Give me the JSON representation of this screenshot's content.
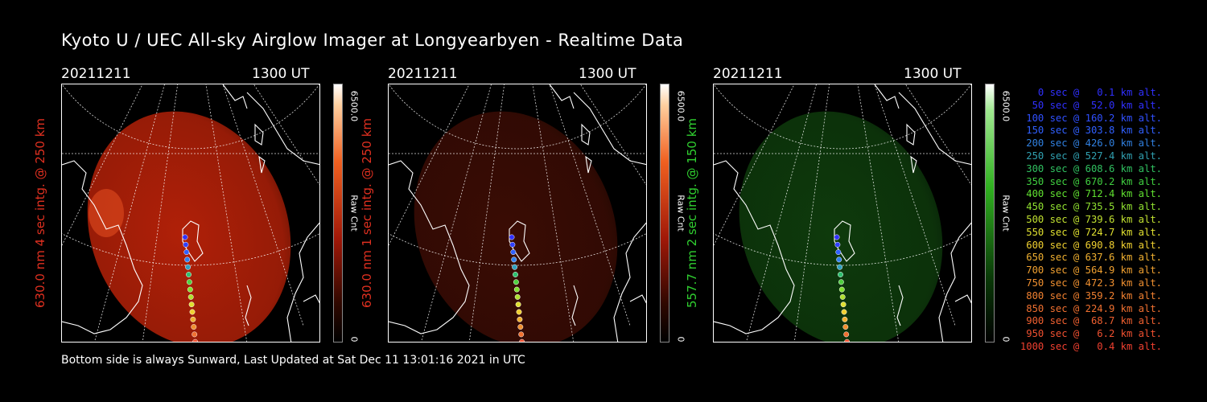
{
  "title": "Kyoto U / UEC All-sky Airglow Imager at Longyearbyen - Realtime Data",
  "footer": "Bottom side is always Sunward, Last Updated at Sat Dec 11 13:01:16 2021 in UTC",
  "panels": [
    {
      "date": "20211211",
      "time": "1300 UT",
      "label": "630.0 nm 4 sec intg. @ 250 km",
      "label_color": "#e03020",
      "cb_max": "6500.0",
      "cb_unit": "Raw Cnt",
      "cb_min": "0",
      "image_color": "#b02008",
      "colorbar": "red"
    },
    {
      "date": "20211211",
      "time": "1300 UT",
      "label": "630.0 nm 1 sec intg. @ 250 km",
      "label_color": "#e03020",
      "cb_max": "6500.0",
      "cb_unit": "Raw Cnt",
      "cb_min": "0",
      "image_color": "#3a0c04",
      "colorbar": "red"
    },
    {
      "date": "20211211",
      "time": "1300 UT",
      "label": "557.7 nm 2 sec intg. @ 150 km",
      "label_color": "#30d030",
      "cb_max": "6500.0",
      "cb_unit": "Raw Cnt",
      "cb_min": "0",
      "image_color": "#0e3a0c",
      "colorbar": "green"
    }
  ],
  "legend": [
    {
      "text": "0 sec @   0.1 km alt.",
      "color": "#3030ff"
    },
    {
      "text": "50 sec @  52.0 km alt.",
      "color": "#3030ff"
    },
    {
      "text": "100 sec @ 160.2 km alt.",
      "color": "#3050ff"
    },
    {
      "text": "150 sec @ 303.8 km alt.",
      "color": "#3060ff"
    },
    {
      "text": "200 sec @ 426.0 km alt.",
      "color": "#3080e0"
    },
    {
      "text": "250 sec @ 527.4 km alt.",
      "color": "#30a0b0"
    },
    {
      "text": "300 sec @ 608.6 km alt.",
      "color": "#30c060"
    },
    {
      "text": "350 sec @ 670.2 km alt.",
      "color": "#40d040"
    },
    {
      "text": "400 sec @ 712.4 km alt.",
      "color": "#60e030"
    },
    {
      "text": "450 sec @ 735.5 km alt.",
      "color": "#90e030"
    },
    {
      "text": "500 sec @ 739.6 km alt.",
      "color": "#c0e030"
    },
    {
      "text": "550 sec @ 724.7 km alt.",
      "color": "#e0e030"
    },
    {
      "text": "600 sec @ 690.8 km alt.",
      "color": "#f0d030"
    },
    {
      "text": "650 sec @ 637.6 km alt.",
      "color": "#f0b030"
    },
    {
      "text": "700 sec @ 564.9 km alt.",
      "color": "#f0a030"
    },
    {
      "text": "750 sec @ 472.3 km alt.",
      "color": "#f09030"
    },
    {
      "text": "800 sec @ 359.2 km alt.",
      "color": "#f08030"
    },
    {
      "text": "850 sec @ 224.9 km alt.",
      "color": "#f07030"
    },
    {
      "text": "900 sec @  68.7 km alt.",
      "color": "#f06030"
    },
    {
      "text": "950 sec @   6.2 km alt.",
      "color": "#f05030"
    },
    {
      "text": "1000 sec @   0.4 km alt.",
      "color": "#f04030"
    }
  ]
}
